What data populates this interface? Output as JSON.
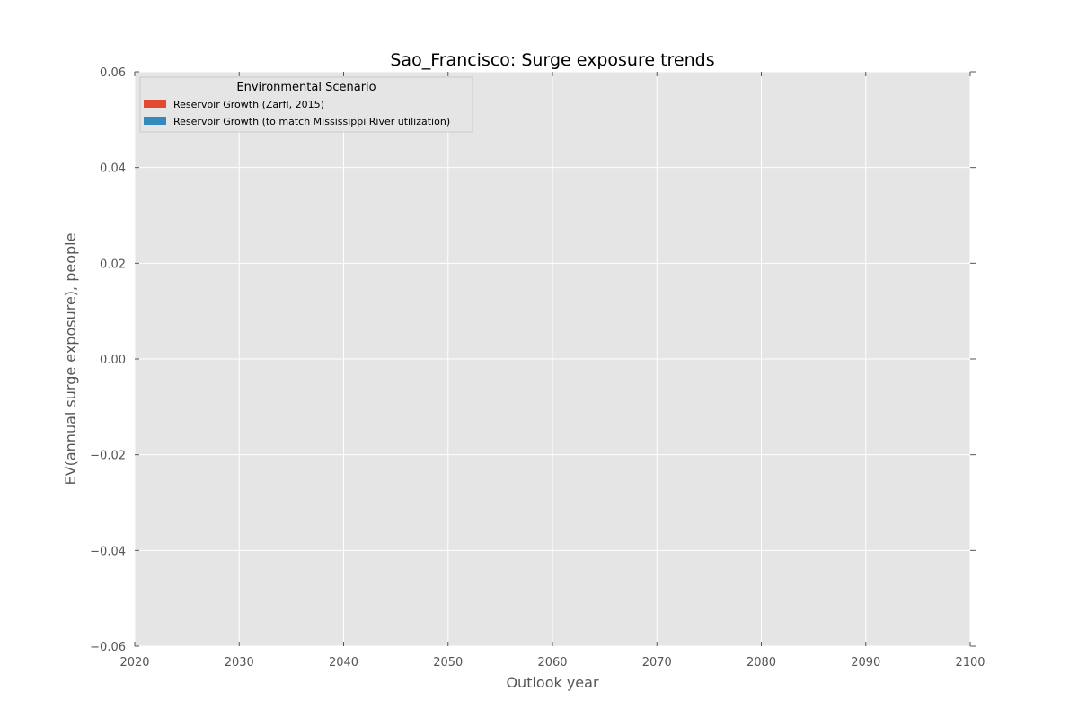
{
  "chart_data": {
    "type": "area",
    "title": "Sao_Francisco: Surge exposure trends",
    "xlabel": "Outlook year",
    "ylabel": "EV(annual surge exposure), people",
    "xlim": [
      2020,
      2100
    ],
    "ylim": [
      -0.06,
      0.06
    ],
    "xticks": [
      2020,
      2030,
      2040,
      2050,
      2060,
      2070,
      2080,
      2090,
      2100
    ],
    "xtick_labels": [
      "2020",
      "2030",
      "2040",
      "2050",
      "2060",
      "2070",
      "2080",
      "2090",
      "2100"
    ],
    "yticks": [
      -0.06,
      -0.04,
      -0.02,
      0.0,
      0.02,
      0.04,
      0.06
    ],
    "ytick_labels": [
      "−0.06",
      "−0.04",
      "−0.02",
      "0.00",
      "0.02",
      "0.04",
      "0.06"
    ],
    "grid": true,
    "legend": {
      "title": "Environmental Scenario",
      "location": "top-left",
      "entries": [
        {
          "name": "Reservoir Growth (Zarfl, 2015)",
          "color": "#E24A33"
        },
        {
          "name": "Reservoir Growth (to match Mississippi River utilization)",
          "color": "#348ABD"
        }
      ]
    },
    "series": [
      {
        "name": "Reservoir Growth (Zarfl, 2015)",
        "color": "#E24A33",
        "x": [],
        "values": []
      },
      {
        "name": "Reservoir Growth (to match Mississippi River utilization)",
        "color": "#348ABD",
        "x": [],
        "values": []
      }
    ],
    "colors": {
      "plot_background": "#E5E5E5",
      "grid": "#FFFFFF",
      "text": "#555555",
      "title": "#000000"
    }
  }
}
